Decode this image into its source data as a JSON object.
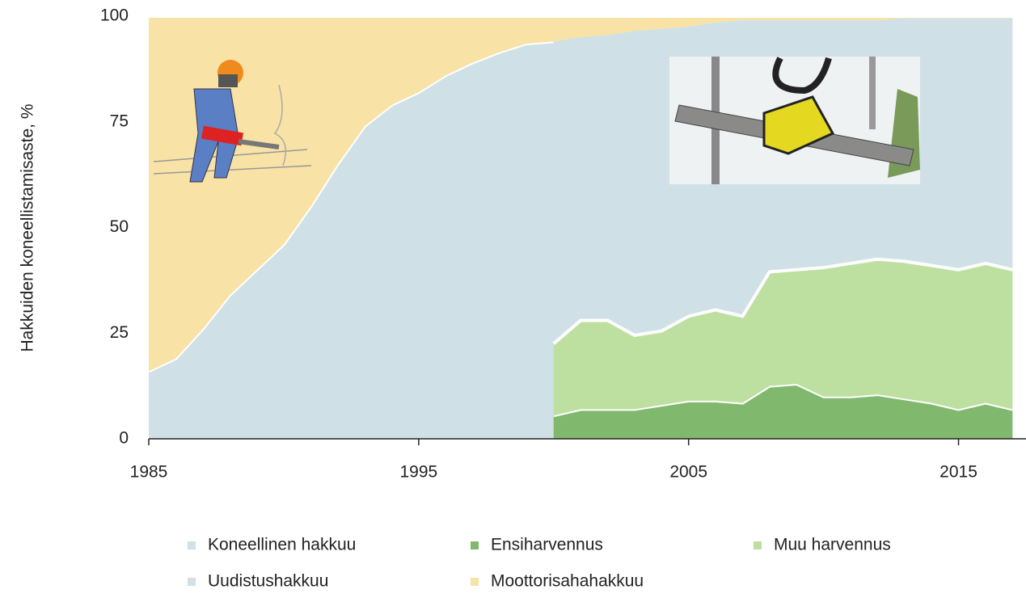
{
  "chart_data": {
    "type": "area",
    "ylabel": "Hakkuiden koneellistamisaste, %",
    "x": [
      1985,
      1986,
      1987,
      1988,
      1989,
      1990,
      1991,
      1992,
      1993,
      1994,
      1995,
      1996,
      1997,
      1998,
      1999,
      2000,
      2001,
      2002,
      2003,
      2004,
      2005,
      2006,
      2007,
      2008,
      2009,
      2010,
      2011,
      2012,
      2013,
      2014,
      2015,
      2016,
      2017
    ],
    "series": [
      {
        "name": "Koneellinen hakkuu",
        "color": "#cfe0e6",
        "values": [
          16,
          19,
          26,
          34,
          40,
          46,
          55,
          65,
          74,
          79,
          82,
          86,
          89,
          91.5,
          93.5,
          94,
          95,
          95.5,
          96.5,
          97,
          97.5,
          98.5,
          99,
          99,
          99,
          99,
          99,
          99,
          99.5,
          99.5,
          99.5,
          99.5,
          99.5
        ]
      },
      {
        "name": "Ensiharvennus",
        "color": "#80b86e",
        "values": [
          null,
          null,
          null,
          null,
          null,
          null,
          null,
          null,
          null,
          null,
          null,
          null,
          null,
          null,
          null,
          5.5,
          7,
          7,
          7,
          8,
          9,
          9,
          8.5,
          12.5,
          13,
          10,
          10,
          10.5,
          9.5,
          8.5,
          7,
          8.5,
          7
        ]
      },
      {
        "name": "Muu harvennus",
        "color": "#bddfa0",
        "values": [
          null,
          null,
          null,
          null,
          null,
          null,
          null,
          null,
          null,
          null,
          null,
          null,
          null,
          null,
          null,
          17,
          21,
          21,
          17.5,
          17.5,
          20,
          21.5,
          20.5,
          27,
          27,
          30.5,
          31.5,
          32,
          32.5,
          32.5,
          33,
          33,
          33
        ]
      },
      {
        "name": "Uudistushakkuu",
        "color": "#cfe0e6",
        "values": [
          null,
          null,
          null,
          null,
          null,
          null,
          null,
          null,
          null,
          null,
          null,
          null,
          null,
          null,
          null,
          71.5,
          67,
          67.5,
          72,
          71.5,
          68.5,
          68,
          70,
          59.5,
          59,
          58.5,
          57.5,
          56.5,
          57.5,
          58.5,
          59.5,
          58,
          59.5
        ]
      },
      {
        "name": "Moottorisahahakkuu",
        "color": "#f8e2a6",
        "values": [
          84,
          81,
          74,
          66,
          60,
          54,
          45,
          35,
          26,
          21,
          18,
          14,
          11,
          8.5,
          6.5,
          6,
          5,
          4.5,
          3.5,
          3,
          2.5,
          1.5,
          1,
          1,
          1,
          1,
          1,
          1,
          0.5,
          0.5,
          0.5,
          0.5,
          0.5
        ]
      }
    ],
    "xlim": [
      1985,
      2017.5
    ],
    "xticks": [
      1985,
      1995,
      2005,
      2015
    ],
    "ylim": [
      0,
      100
    ],
    "yticks": [
      0,
      25,
      50,
      75,
      100
    ],
    "grid": false
  }
}
